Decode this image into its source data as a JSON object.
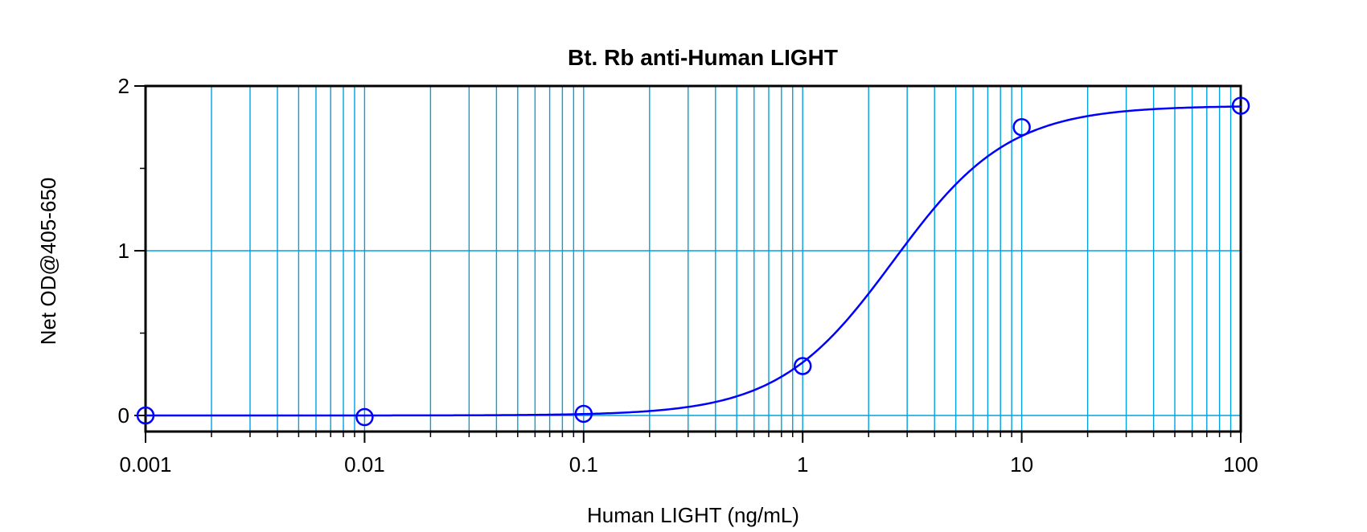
{
  "chart_data": {
    "type": "scatter",
    "title": "Bt. Rb anti-Human LIGHT",
    "xlabel": "Human LIGHT (ng/mL)",
    "ylabel": "Net OD@405-650",
    "x_scale": "log",
    "xlim": [
      0.001,
      100
    ],
    "ylim": [
      -0.1,
      2
    ],
    "x_ticks": [
      {
        "value": 0.001,
        "label": "0.001"
      },
      {
        "value": 0.01,
        "label": "0.01"
      },
      {
        "value": 0.1,
        "label": "0.1"
      },
      {
        "value": 1,
        "label": "1"
      },
      {
        "value": 10,
        "label": "10"
      },
      {
        "value": 100,
        "label": "100"
      }
    ],
    "y_ticks": [
      {
        "value": 0,
        "label": "0"
      },
      {
        "value": 1,
        "label": "1"
      },
      {
        "value": 2,
        "label": "2"
      }
    ],
    "y_minor_ticks": [
      0.5,
      1.5
    ],
    "grid": "vertical at every log decade subdivision, horizontal at 1",
    "legend": "none",
    "series": [
      {
        "marker": "open circle",
        "points": [
          {
            "x": 0.001,
            "y": 0.0
          },
          {
            "x": 0.01,
            "y": -0.01
          },
          {
            "x": 0.1,
            "y": 0.01
          },
          {
            "x": 1,
            "y": 0.3
          },
          {
            "x": 10,
            "y": 1.75
          },
          {
            "x": 100,
            "y": 1.88
          }
        ]
      }
    ],
    "fit": {
      "model": "4PL",
      "bottom": 0.0,
      "top": 1.88,
      "ec50": 2.6,
      "hill": 1.65
    },
    "colors": {
      "series": "#0000ff",
      "grid": "#00a0e0",
      "axes": "#000000"
    }
  }
}
